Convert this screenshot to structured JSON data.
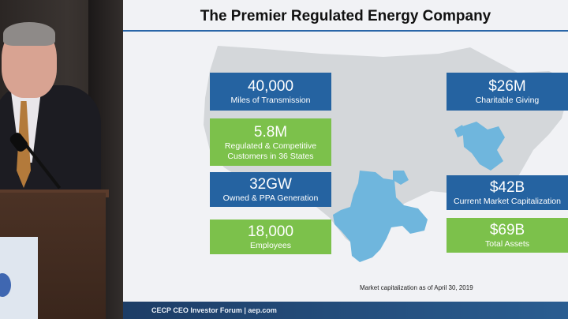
{
  "slide": {
    "title": "The Premier Regulated Energy Company",
    "footnote": "Market capitalization as of April 30, 2019",
    "footer": "CECP CEO Investor Forum   |   aep.com"
  },
  "stats_left": [
    {
      "value": "40,000",
      "label": "Miles of Transmission",
      "color": "#2563a1"
    },
    {
      "value": "5.8M",
      "label": "Regulated & Competitive Customers in 36 States",
      "color": "#7cc14b"
    },
    {
      "value": "32GW",
      "label": "Owned & PPA Generation",
      "color": "#2563a1"
    },
    {
      "value": "18,000",
      "label": "Employees",
      "color": "#7cc14b"
    }
  ],
  "stats_right": [
    {
      "value": "$26M",
      "label": "Charitable Giving",
      "color": "#2563a1"
    },
    {
      "value": "$42B",
      "label": "Current Market Capitalization",
      "color": "#2563a1"
    },
    {
      "value": "$69B",
      "label": "Total Assets",
      "color": "#7cc14b"
    }
  ],
  "colors": {
    "accent_blue": "#2563a1",
    "accent_green": "#7cc14b",
    "service_area": "#6fb6dd",
    "map_land": "#d4d7da"
  }
}
